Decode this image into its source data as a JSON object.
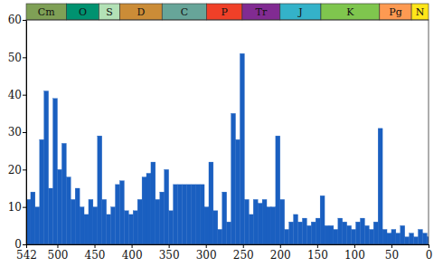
{
  "chart_data": {
    "type": "histogram",
    "color": "#1a5fc0",
    "bins": [
      542,
      536,
      530,
      524,
      518,
      512,
      506,
      500,
      494,
      488,
      482,
      476,
      470,
      464,
      458,
      452,
      446,
      440,
      434,
      428,
      422,
      416,
      410,
      404,
      398,
      392,
      386,
      380,
      374,
      368,
      362,
      356,
      350,
      344,
      338,
      332,
      326,
      320,
      314,
      308,
      302,
      296,
      290,
      284,
      278,
      272,
      266,
      260,
      254,
      248,
      242,
      236,
      230,
      224,
      218,
      212,
      206,
      200,
      194,
      188,
      182,
      176,
      170,
      164,
      158,
      152,
      146,
      140,
      134,
      128,
      122,
      116,
      110,
      104,
      98,
      92,
      86,
      80,
      74,
      68,
      62,
      56,
      50,
      44,
      38,
      32,
      26,
      20,
      14,
      8,
      2,
      0
    ],
    "values": [
      12,
      14,
      10,
      28,
      41,
      15,
      39,
      20,
      27,
      18,
      12,
      15,
      10,
      8,
      12,
      10,
      29,
      12,
      8,
      10,
      16,
      17,
      9,
      8,
      9,
      12,
      18,
      19,
      22,
      12,
      14,
      20,
      9,
      16,
      16,
      16,
      16,
      16,
      16,
      16,
      10,
      22,
      9,
      4,
      14,
      6,
      35,
      28,
      51,
      12,
      8,
      12,
      11,
      12,
      10,
      10,
      29,
      12,
      4,
      6,
      8,
      6,
      7,
      5,
      6,
      7,
      13,
      5,
      5,
      4,
      7,
      6,
      5,
      4,
      6,
      7,
      5,
      4,
      6,
      31,
      4,
      3,
      4,
      3,
      5,
      2,
      3,
      2,
      4,
      3,
      2
    ],
    "xlim": [
      542,
      0
    ],
    "xticks": [
      542,
      500,
      450,
      400,
      350,
      300,
      250,
      200,
      150,
      100,
      50,
      0
    ],
    "ylim": [
      0,
      60
    ],
    "yticks": [
      0,
      10,
      20,
      30,
      40,
      50,
      60
    ],
    "periods": [
      {
        "name": "Cm",
        "start": 542,
        "end": 488,
        "color": "#7fa056"
      },
      {
        "name": "O",
        "start": 488,
        "end": 444,
        "color": "#009270"
      },
      {
        "name": "S",
        "start": 444,
        "end": 416,
        "color": "#b3e1b6"
      },
      {
        "name": "D",
        "start": 416,
        "end": 359,
        "color": "#cb8c37"
      },
      {
        "name": "C",
        "start": 359,
        "end": 299,
        "color": "#67a599"
      },
      {
        "name": "P",
        "start": 299,
        "end": 251,
        "color": "#f04028"
      },
      {
        "name": "Tr",
        "start": 251,
        "end": 200,
        "color": "#812b92"
      },
      {
        "name": "J",
        "start": 200,
        "end": 145,
        "color": "#34b2c9"
      },
      {
        "name": "K",
        "start": 145,
        "end": 66,
        "color": "#7fc64e"
      },
      {
        "name": "Pg",
        "start": 66,
        "end": 23,
        "color": "#fd9a52"
      },
      {
        "name": "N",
        "start": 23,
        "end": 0,
        "color": "#ffe619"
      }
    ]
  }
}
